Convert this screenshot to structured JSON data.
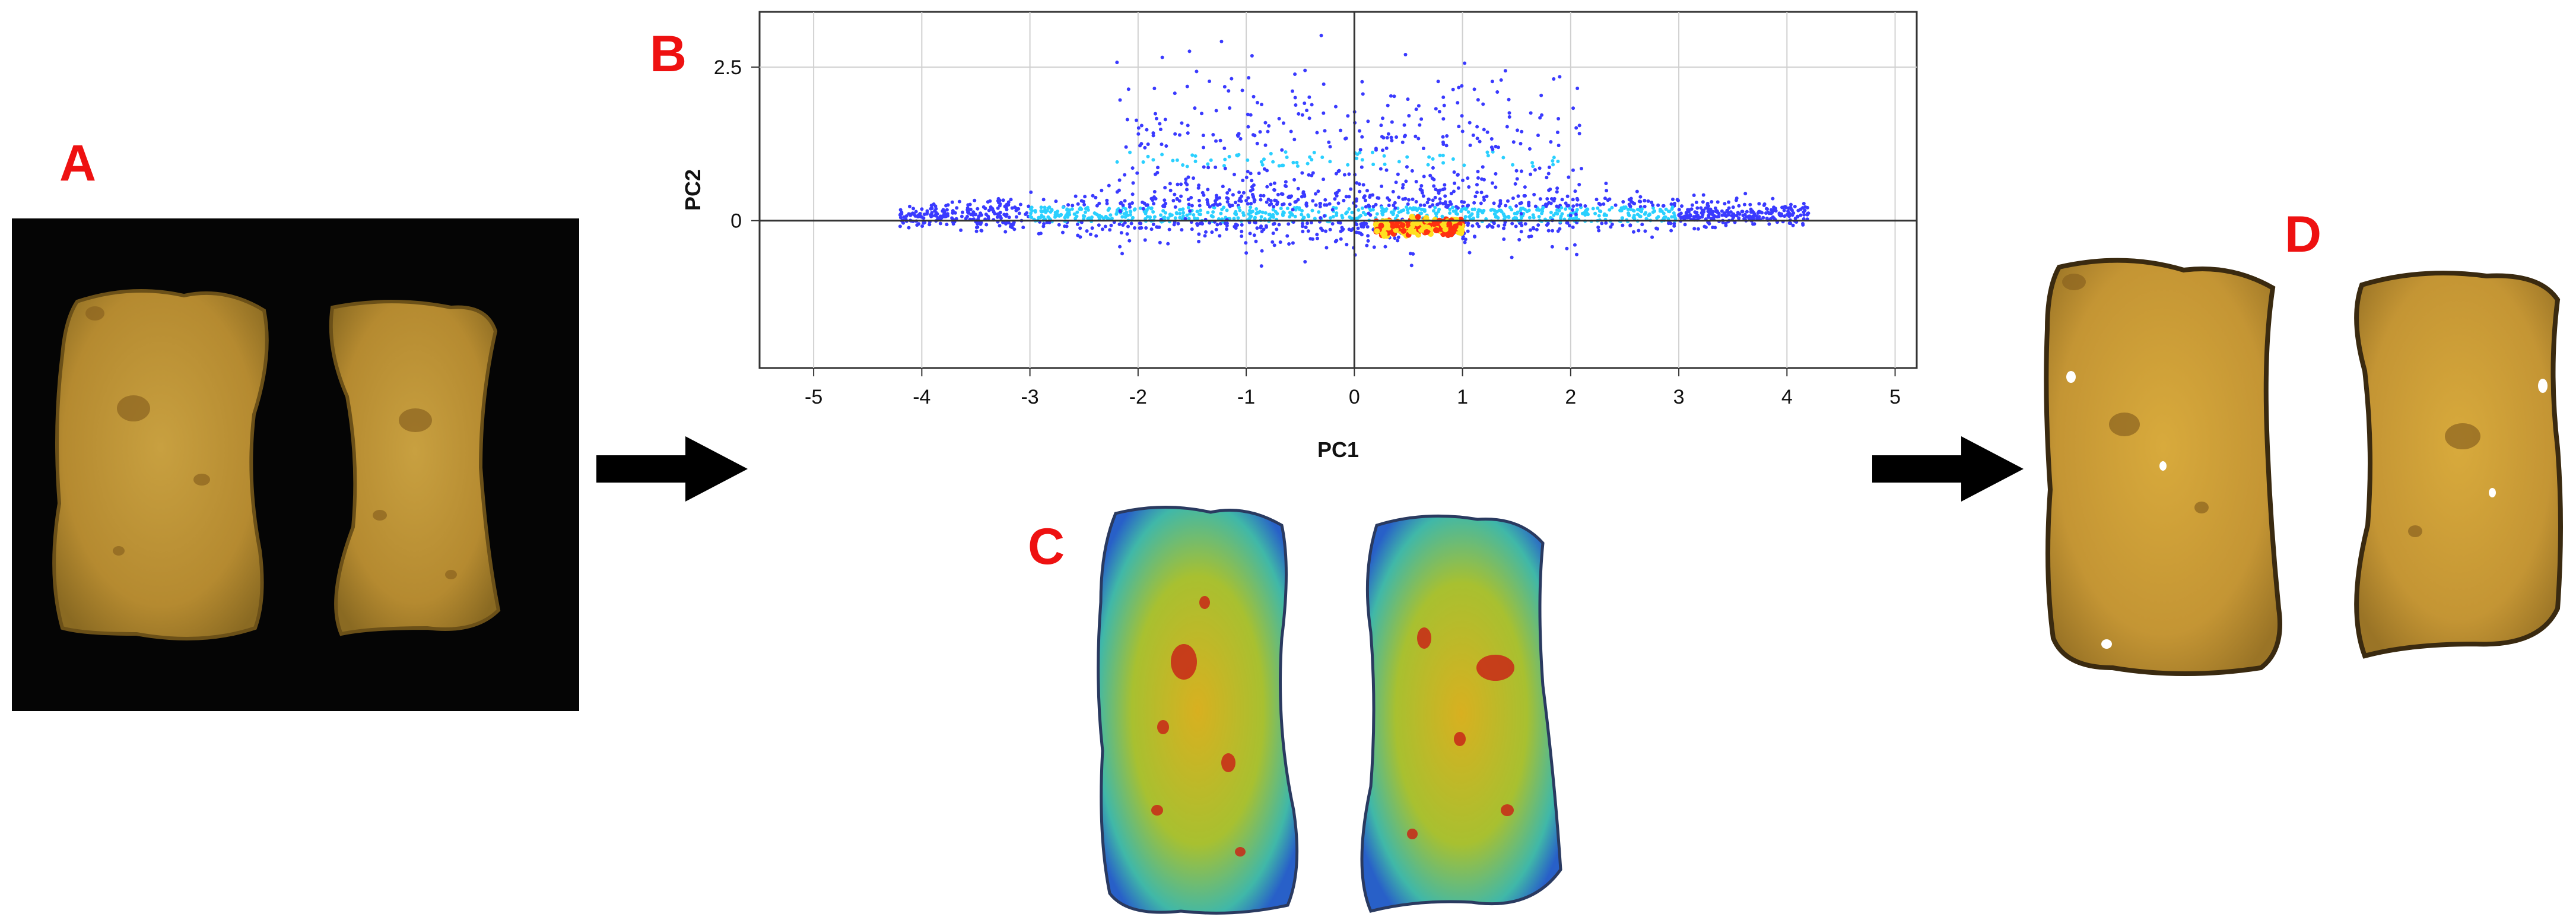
{
  "panels": {
    "a": {
      "label": "A"
    },
    "b": {
      "label": "B"
    },
    "c": {
      "label": "C"
    },
    "d": {
      "label": "D"
    }
  },
  "chart_data": {
    "type": "scatter",
    "xlabel": "PC1",
    "ylabel": "PC2",
    "xlim": [
      -5.5,
      5.2
    ],
    "ylim": [
      -2.4,
      3.4
    ],
    "xticks": [
      -5,
      -4,
      -3,
      -2,
      -1,
      0,
      1,
      2,
      3,
      4,
      5
    ],
    "yticks": [
      {
        "value": 0,
        "label": "0"
      },
      {
        "value": 2.5,
        "label": "2.5"
      }
    ],
    "grid": true,
    "zero_lines": true,
    "density_colormap": [
      "#3a3aff",
      "#2ad0ff",
      "#ffe020",
      "#ff3010"
    ],
    "clusters": [
      {
        "x": [
          -4.2,
          4.2
        ],
        "y_center": 0.1,
        "spread": 0.5
      },
      {
        "x": [
          -2.2,
          2.1
        ],
        "y_center": 1.0,
        "spread": 0.8
      },
      {
        "x": [
          0.2,
          1.0
        ],
        "y_center": -0.1,
        "spread": 0.12
      }
    ]
  },
  "colors": {
    "letters": "#ee1111",
    "background_a": "#050505",
    "bread": "#c59a3a",
    "crust": "#8a6a22",
    "arrow": "#000000"
  }
}
